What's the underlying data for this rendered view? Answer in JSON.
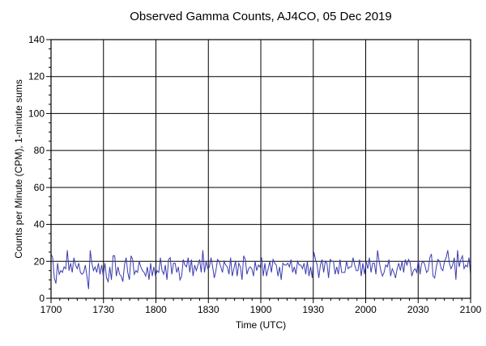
{
  "chart_data": {
    "type": "line",
    "title": "Observed Gamma Counts, AJ4CO, 05 Dec 2019",
    "xlabel": "Time (UTC)",
    "ylabel": "Counts per Minute (CPM), 1-minute sums",
    "xlim_minutes": [
      0,
      240
    ],
    "ylim": [
      0,
      140
    ],
    "x_ticks": [
      "1700",
      "1730",
      "1800",
      "1830",
      "1900",
      "1930",
      "2000",
      "2030",
      "2100"
    ],
    "y_ticks": [
      0,
      20,
      40,
      60,
      80,
      100,
      120,
      140
    ],
    "grid": true,
    "series": [
      {
        "color": "#3b3bb0",
        "values": [
          24,
          22,
          11,
          8,
          19,
          13,
          15,
          14,
          17,
          16,
          26,
          15,
          19,
          14,
          22,
          18,
          16,
          19,
          14,
          13,
          14,
          18,
          12,
          5,
          26,
          19,
          15,
          17,
          14,
          19,
          13,
          18,
          12,
          19,
          11,
          9,
          17,
          10,
          23,
          23,
          12,
          17,
          13,
          12,
          9,
          18,
          22,
          14,
          10,
          23,
          21,
          13,
          15,
          14,
          20,
          17,
          15,
          14,
          12,
          17,
          10,
          19,
          12,
          17,
          12,
          15,
          14,
          22,
          15,
          13,
          18,
          10,
          21,
          22,
          13,
          19,
          19,
          14,
          17,
          10,
          12,
          21,
          18,
          17,
          22,
          14,
          21,
          12,
          18,
          15,
          18,
          21,
          14,
          26,
          14,
          20,
          16,
          17,
          22,
          17,
          11,
          15,
          21,
          20,
          17,
          14,
          20,
          18,
          17,
          13,
          22,
          12,
          16,
          20,
          12,
          19,
          17,
          10,
          23,
          21,
          13,
          16,
          17,
          16,
          12,
          20,
          15,
          18,
          17,
          22,
          12,
          19,
          12,
          16,
          20,
          14,
          21,
          19,
          18,
          12,
          17,
          10,
          19,
          18,
          18,
          19,
          17,
          21,
          14,
          17,
          13,
          20,
          18,
          18,
          16,
          19,
          13,
          20,
          12,
          17,
          11,
          25,
          21,
          18,
          11,
          18,
          21,
          14,
          20,
          19,
          11,
          21,
          20,
          20,
          13,
          17,
          13,
          21,
          14,
          14,
          14,
          20,
          16,
          17,
          17,
          22,
          18,
          15,
          15,
          21,
          12,
          19,
          13,
          20,
          16,
          22,
          14,
          19,
          19,
          13,
          26,
          20,
          15,
          12,
          14,
          18,
          17,
          21,
          12,
          16,
          14,
          11,
          16,
          19,
          15,
          20,
          14,
          21,
          18,
          21,
          19,
          12,
          15,
          16,
          14,
          21,
          13,
          19,
          20,
          18,
          14,
          15,
          22,
          24,
          12,
          11,
          17,
          21,
          20,
          16,
          15,
          20,
          22,
          26,
          19,
          16,
          18,
          22,
          10,
          26,
          17,
          21,
          23,
          16,
          18,
          17,
          22,
          13
        ]
      }
    ]
  }
}
